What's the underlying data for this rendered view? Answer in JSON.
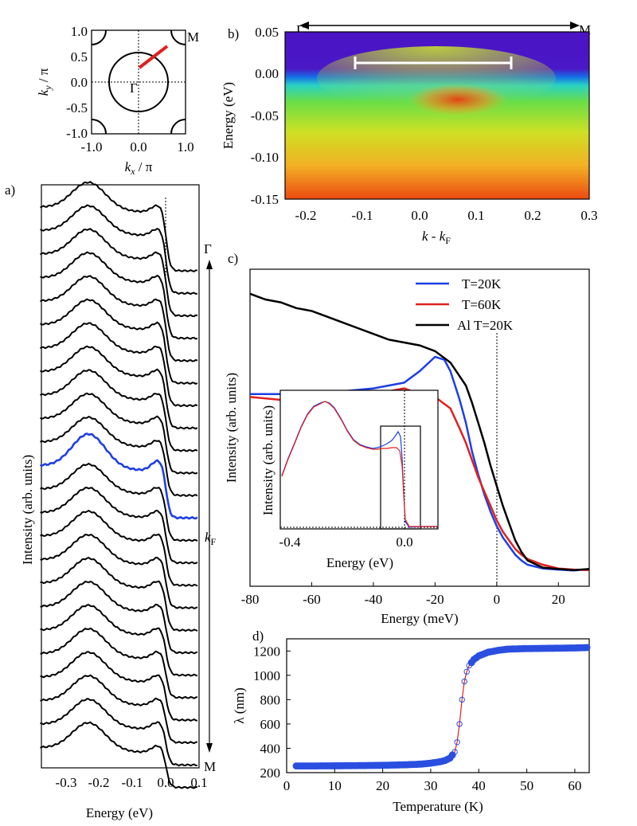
{
  "panels": {
    "a": {
      "label": "a)",
      "xlabel": "Energy (eV)",
      "ylabel": "Intensity (arb. units)",
      "xticks": [
        "-0.3",
        "-0.2",
        "-0.1",
        "0.0",
        "0.1"
      ],
      "gamma_label": "Γ",
      "m_label": "M",
      "kf_label": "k",
      "kf_sub": "F",
      "n_curves": 24,
      "highlight_index": 11,
      "highlight_color": "#1f3fe6",
      "curve_color": "#000000"
    },
    "b": {
      "label": "b)",
      "ylabel": "Energy (eV)",
      "xlabel_main": "k - k",
      "xlabel_sub": "F",
      "gamma_label": "Γ",
      "m_label": "M",
      "xticks": [
        "-0.2",
        "-0.1",
        "0.0",
        "0.1",
        "0.2",
        "0.3"
      ],
      "yticks": [
        "0.05",
        "0.00",
        "-0.05",
        "-0.10",
        "-0.15"
      ],
      "colormap": [
        "#4a10c8",
        "#1a6ee0",
        "#2ad0c0",
        "#6ee040",
        "#d8e020",
        "#f0a020",
        "#e84010"
      ]
    },
    "bz": {
      "xlabel_main": "k",
      "xlabel_sub": "x",
      "ylabel_main": "k",
      "ylabel_sub": "y",
      "per_pi": " / π",
      "xticks": [
        "-1.0",
        "0.0",
        "1.0"
      ],
      "yticks": [
        "1.0",
        "0.5",
        "0.0",
        "-0.5",
        "-1.0"
      ],
      "center_label": "Γ",
      "corner_label": "M",
      "cut_color": "#e02020"
    },
    "c": {
      "label": "c)",
      "ylabel": "Intensity (arb. units)",
      "xlabel": "Energy (meV)",
      "inset_xlabel": "Energy (eV)",
      "inset_ylabel": "Intensity (arb. units)",
      "inset_xticks": [
        "-0.4",
        "0.0"
      ]
    },
    "d": {
      "label": "d)",
      "ylabel": "λ (nm)",
      "xlabel": "Temperature (K)",
      "marker_color": "#2a4fe0",
      "fit_color": "#e02020"
    }
  },
  "chart_data": [
    {
      "type": "line",
      "title": "c)",
      "xlabel": "Energy (meV)",
      "ylabel": "Intensity (arb. units)",
      "xlim": [
        -80,
        30
      ],
      "ylim": [
        0,
        1.0
      ],
      "xticks": [
        -80,
        -60,
        -40,
        -20,
        0,
        20
      ],
      "series": [
        {
          "name": "T=20K",
          "color": "#1f3fe6",
          "x": [
            -80,
            -70,
            -60,
            -50,
            -40,
            -30,
            -25,
            -20,
            -17,
            -15,
            -12,
            -10,
            -8,
            -6,
            -4,
            -2,
            0,
            2,
            4,
            6,
            8,
            10,
            15,
            20,
            25,
            30
          ],
          "y": [
            0.62,
            0.62,
            0.62,
            0.63,
            0.64,
            0.66,
            0.7,
            0.75,
            0.74,
            0.7,
            0.6,
            0.52,
            0.42,
            0.34,
            0.27,
            0.21,
            0.16,
            0.12,
            0.09,
            0.06,
            0.04,
            0.025,
            0.012,
            0.008,
            0.005,
            0.01
          ]
        },
        {
          "name": "T=60K",
          "color": "#e02020",
          "x": [
            -80,
            -70,
            -60,
            -50,
            -40,
            -30,
            -25,
            -20,
            -15,
            -12,
            -10,
            -8,
            -6,
            -4,
            -2,
            0,
            2,
            4,
            6,
            8,
            10,
            15,
            20,
            25,
            30
          ],
          "y": [
            0.61,
            0.6,
            0.61,
            0.62,
            0.62,
            0.64,
            0.62,
            0.61,
            0.57,
            0.5,
            0.45,
            0.39,
            0.33,
            0.28,
            0.23,
            0.18,
            0.14,
            0.11,
            0.08,
            0.06,
            0.045,
            0.025,
            0.012,
            0.008,
            0.006
          ]
        },
        {
          "name": "Al T=20K",
          "color": "#000000",
          "x": [
            -80,
            -75,
            -70,
            -65,
            -60,
            -55,
            -50,
            -45,
            -40,
            -35,
            -30,
            -25,
            -20,
            -15,
            -10,
            -8,
            -6,
            -4,
            -2,
            0,
            2,
            4,
            6,
            8,
            10,
            15,
            20,
            25,
            30
          ],
          "y": [
            0.97,
            0.95,
            0.94,
            0.92,
            0.91,
            0.89,
            0.87,
            0.85,
            0.83,
            0.81,
            0.8,
            0.79,
            0.77,
            0.73,
            0.65,
            0.59,
            0.52,
            0.45,
            0.37,
            0.3,
            0.23,
            0.17,
            0.11,
            0.07,
            0.04,
            0.015,
            0.01,
            0.006,
            0.01
          ]
        }
      ]
    },
    {
      "type": "scatter",
      "title": "d)",
      "xlabel": "Temperature (K)",
      "ylabel": "λ (nm)",
      "xlim": [
        0,
        63
      ],
      "ylim": [
        200,
        1300
      ],
      "xticks": [
        0,
        10,
        20,
        30,
        40,
        50,
        60
      ],
      "yticks": [
        200,
        400,
        600,
        800,
        1000,
        1200
      ],
      "x": [
        2,
        5,
        10,
        15,
        20,
        25,
        28,
        30,
        32,
        33,
        34,
        35,
        35.5,
        36,
        36.5,
        37,
        37.5,
        38,
        39,
        40,
        42,
        44,
        46,
        50,
        55,
        60,
        62.5
      ],
      "y": [
        255,
        255,
        256,
        258,
        260,
        265,
        270,
        278,
        290,
        300,
        320,
        370,
        450,
        600,
        800,
        950,
        1030,
        1080,
        1130,
        1160,
        1190,
        1205,
        1215,
        1220,
        1222,
        1225,
        1228
      ]
    }
  ]
}
